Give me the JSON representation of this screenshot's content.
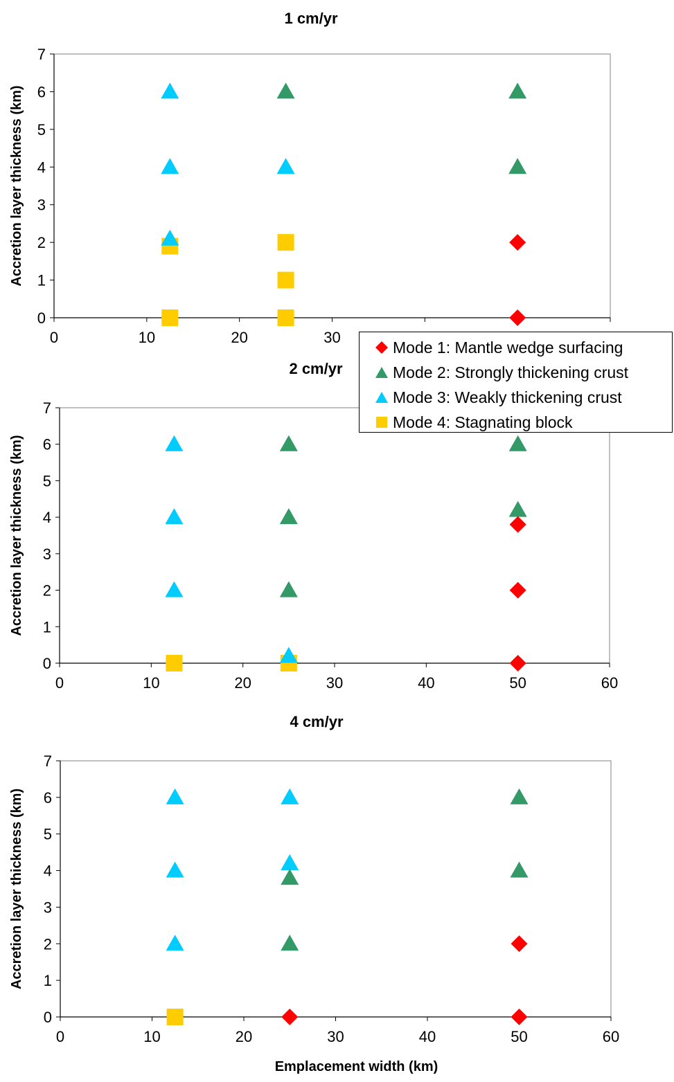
{
  "chart_data": [
    {
      "type": "scatter",
      "title": "1 cm/yr",
      "xlabel": "",
      "ylabel": "Accretion layer thickness (km)",
      "xlim": [
        0,
        60
      ],
      "ylim": [
        0,
        7
      ],
      "xticks": [
        0,
        10,
        20,
        30,
        40,
        50,
        60
      ],
      "yticks": [
        0,
        1,
        2,
        3,
        4,
        5,
        6,
        7
      ],
      "grid": false,
      "series": [
        {
          "name": "Mode 1: Mantle wedge surfacing",
          "points": [
            [
              50,
              2
            ],
            [
              50,
              0
            ]
          ]
        },
        {
          "name": "Mode 2: Strongly thickening crust",
          "points": [
            [
              25,
              6
            ],
            [
              50,
              6
            ],
            [
              50,
              4
            ]
          ]
        },
        {
          "name": "Mode 3: Weakly thickening crust",
          "points": [
            [
              12.5,
              6
            ],
            [
              12.5,
              4
            ],
            [
              25,
              4
            ],
            [
              12.5,
              2.1
            ]
          ]
        },
        {
          "name": "Mode 4: Stagnating block",
          "points": [
            [
              12.5,
              1.9
            ],
            [
              25,
              2
            ],
            [
              25,
              1
            ],
            [
              12.5,
              0
            ],
            [
              25,
              0
            ]
          ]
        }
      ]
    },
    {
      "type": "scatter",
      "title": "2 cm/yr",
      "xlabel": "",
      "ylabel": "Accretion layer thickness (km)",
      "xlim": [
        0,
        60
      ],
      "ylim": [
        0,
        7
      ],
      "xticks": [
        0,
        10,
        20,
        30,
        40,
        50,
        60
      ],
      "yticks": [
        0,
        1,
        2,
        3,
        4,
        5,
        6,
        7
      ],
      "grid": false,
      "series": [
        {
          "name": "Mode 1: Mantle wedge surfacing",
          "points": [
            [
              50,
              3.8
            ],
            [
              50,
              2
            ],
            [
              50,
              0
            ]
          ]
        },
        {
          "name": "Mode 2: Strongly thickening crust",
          "points": [
            [
              25,
              6
            ],
            [
              50,
              6
            ],
            [
              25,
              4
            ],
            [
              50,
              4.2
            ],
            [
              25,
              2
            ]
          ]
        },
        {
          "name": "Mode 3: Weakly thickening crust",
          "points": [
            [
              12.5,
              6
            ],
            [
              12.5,
              4
            ],
            [
              12.5,
              2
            ],
            [
              25,
              0.2
            ]
          ]
        },
        {
          "name": "Mode 4: Stagnating block",
          "points": [
            [
              12.5,
              0
            ],
            [
              25,
              0
            ]
          ]
        }
      ]
    },
    {
      "type": "scatter",
      "title": "4 cm/yr",
      "xlabel": "Emplacement width (km)",
      "ylabel": "Accretion layer thickness (km)",
      "xlim": [
        0,
        60
      ],
      "ylim": [
        0,
        7
      ],
      "xticks": [
        0,
        10,
        20,
        30,
        40,
        50,
        60
      ],
      "yticks": [
        0,
        1,
        2,
        3,
        4,
        5,
        6,
        7
      ],
      "grid": false,
      "series": [
        {
          "name": "Mode 1: Mantle wedge surfacing",
          "points": [
            [
              50,
              2
            ],
            [
              25,
              0
            ],
            [
              50,
              0
            ]
          ]
        },
        {
          "name": "Mode 2: Strongly thickening crust",
          "points": [
            [
              50,
              6
            ],
            [
              25,
              3.8
            ],
            [
              50,
              4
            ],
            [
              25,
              2
            ]
          ]
        },
        {
          "name": "Mode 3: Weakly thickening crust",
          "points": [
            [
              12.5,
              6
            ],
            [
              25,
              6
            ],
            [
              12.5,
              4
            ],
            [
              25,
              4.2
            ],
            [
              12.5,
              2
            ]
          ]
        },
        {
          "name": "Mode 4: Stagnating block",
          "points": [
            [
              12.5,
              0
            ]
          ]
        }
      ]
    }
  ],
  "legend": {
    "placement": "right, between top and middle panels",
    "items": [
      {
        "label": "Mode 1: Mantle wedge surfacing",
        "marker": "diamond",
        "color": "#ff0000"
      },
      {
        "label": "Mode 2: Strongly thickening crust",
        "marker": "triangle",
        "color": "#339966"
      },
      {
        "label": "Mode 3: Weakly thickening crust",
        "marker": "triangle",
        "color": "#00ccff"
      },
      {
        "label": "Mode 4: Stagnating block",
        "marker": "square",
        "color": "#ffcc00"
      }
    ]
  }
}
